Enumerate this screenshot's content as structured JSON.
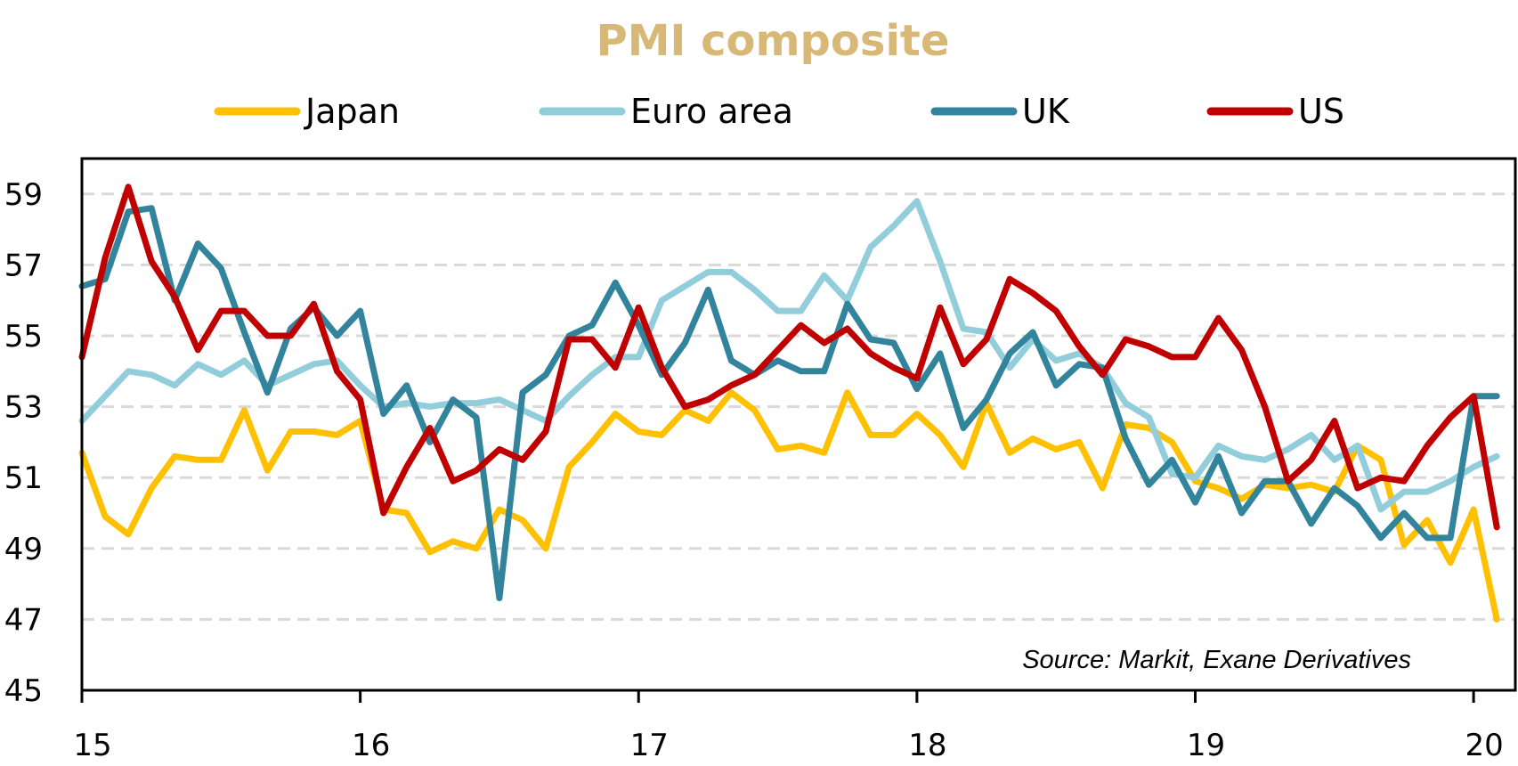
{
  "chart_data": {
    "type": "line",
    "title": "PMI composite",
    "source_note": "Source: Markit, Exane Derivatives",
    "xlabel": "",
    "ylabel": "",
    "ylim": [
      45,
      60
    ],
    "yticks": [
      45,
      47,
      49,
      51,
      53,
      55,
      57,
      59
    ],
    "xlim": [
      2015.0,
      2020.15
    ],
    "xticks": [
      {
        "value": 2015,
        "label": "15"
      },
      {
        "value": 2016,
        "label": "16"
      },
      {
        "value": 2017,
        "label": "17"
      },
      {
        "value": 2018,
        "label": "18"
      },
      {
        "value": 2019,
        "label": "19"
      },
      {
        "value": 2020,
        "label": "20"
      }
    ],
    "grid": "horizontal-dashed",
    "legend_position": "top",
    "x_start": "2015-01",
    "x_frequency": "monthly",
    "series": [
      {
        "name": "Japan",
        "color": "#ffc000",
        "values": [
          51.7,
          49.9,
          49.4,
          50.7,
          51.6,
          51.5,
          51.5,
          52.9,
          51.2,
          52.3,
          52.3,
          52.2,
          52.6,
          50.1,
          50.0,
          48.9,
          49.2,
          49.0,
          50.1,
          49.8,
          49.0,
          51.3,
          52.0,
          52.8,
          52.3,
          52.2,
          52.9,
          52.6,
          53.4,
          52.9,
          51.8,
          51.9,
          51.7,
          53.4,
          52.2,
          52.2,
          52.8,
          52.2,
          51.3,
          53.1,
          51.7,
          52.1,
          51.8,
          52.0,
          50.7,
          52.5,
          52.4,
          52.0,
          50.9,
          50.7,
          50.4,
          50.8,
          50.7,
          50.8,
          50.6,
          51.9,
          51.5,
          49.1,
          49.8,
          48.6,
          50.1,
          47.0
        ]
      },
      {
        "name": "Euro area",
        "color": "#92cddc",
        "values": [
          52.6,
          53.3,
          54.0,
          53.9,
          53.6,
          54.2,
          53.9,
          54.3,
          53.6,
          53.9,
          54.2,
          54.3,
          53.6,
          53.0,
          53.1,
          53.0,
          53.1,
          53.1,
          53.2,
          52.9,
          52.6,
          53.3,
          53.9,
          54.4,
          54.4,
          56.0,
          56.4,
          56.8,
          56.8,
          56.3,
          55.7,
          55.7,
          56.7,
          56.0,
          57.5,
          58.1,
          58.8,
          57.1,
          55.2,
          55.1,
          54.1,
          54.9,
          54.3,
          54.5,
          54.1,
          53.1,
          52.7,
          51.1,
          51.0,
          51.9,
          51.6,
          51.5,
          51.8,
          52.2,
          51.5,
          51.9,
          50.1,
          50.6,
          50.6,
          50.9,
          51.3,
          51.6
        ]
      },
      {
        "name": "UK",
        "color": "#31849b",
        "values": [
          56.4,
          56.6,
          58.5,
          58.6,
          56.0,
          57.6,
          56.9,
          55.1,
          53.4,
          55.2,
          55.8,
          55.0,
          55.7,
          52.8,
          53.6,
          52.0,
          53.2,
          52.7,
          47.6,
          53.4,
          53.9,
          55.0,
          55.3,
          56.5,
          55.3,
          53.9,
          54.8,
          56.3,
          54.3,
          53.9,
          54.3,
          54.0,
          54.0,
          55.9,
          54.9,
          54.8,
          53.5,
          54.5,
          52.4,
          53.2,
          54.5,
          55.1,
          53.6,
          54.2,
          54.1,
          52.1,
          50.8,
          51.5,
          50.3,
          51.6,
          50.0,
          50.9,
          50.9,
          49.7,
          50.7,
          50.2,
          49.3,
          50.0,
          49.3,
          49.3,
          53.3,
          53.3
        ]
      },
      {
        "name": "US",
        "color": "#c00000",
        "values": [
          54.4,
          57.2,
          59.2,
          57.1,
          56.1,
          54.6,
          55.7,
          55.7,
          55.0,
          55.0,
          55.9,
          54.0,
          53.2,
          50.0,
          51.3,
          52.4,
          50.9,
          51.2,
          51.8,
          51.5,
          52.3,
          54.9,
          54.9,
          54.1,
          55.8,
          54.1,
          53.0,
          53.2,
          53.6,
          53.9,
          54.6,
          55.3,
          54.8,
          55.2,
          54.5,
          54.1,
          53.8,
          55.8,
          54.2,
          54.9,
          56.6,
          56.2,
          55.7,
          54.7,
          53.9,
          54.9,
          54.7,
          54.4,
          54.4,
          55.5,
          54.6,
          53.0,
          50.9,
          51.5,
          52.6,
          50.7,
          51.0,
          50.9,
          51.9,
          52.7,
          53.3,
          49.6
        ]
      }
    ]
  }
}
